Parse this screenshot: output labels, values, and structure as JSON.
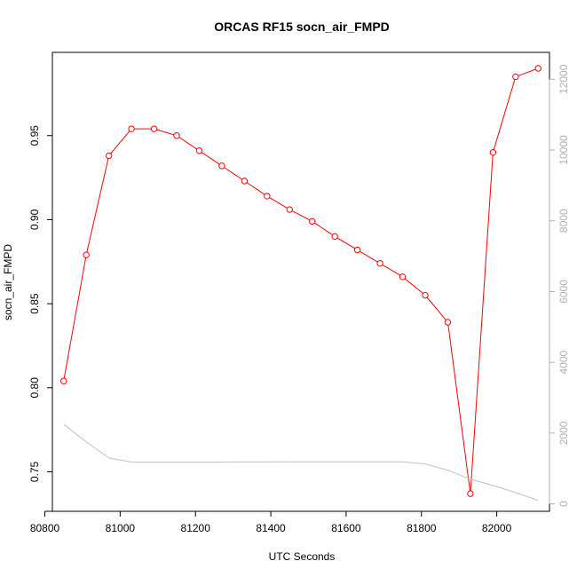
{
  "chart_data": {
    "type": "line",
    "title": "ORCAS RF15 socn_air_FMPD",
    "xlabel": "UTC Seconds",
    "ylabel": "socn_air_FMPD",
    "xlim": [
      80820,
      82140
    ],
    "ylim": [
      0.7265,
      0.9995
    ],
    "y2lim": [
      -210,
      12760
    ],
    "grid": false,
    "x_ticks": [
      80800,
      81000,
      81200,
      81400,
      81600,
      81800,
      82000
    ],
    "y_ticks": [
      0.75,
      0.8,
      0.85,
      0.9,
      0.95
    ],
    "y2_ticks": [
      0,
      2000,
      4000,
      6000,
      8000,
      10000,
      12000
    ],
    "series": [
      {
        "axis": "left",
        "color": "#ff0000",
        "marker": "open-circle",
        "x": [
          80850,
          80910,
          80970,
          81030,
          81090,
          81150,
          81210,
          81270,
          81330,
          81390,
          81450,
          81510,
          81570,
          81630,
          81690,
          81750,
          81810,
          81870,
          81930,
          81990,
          82050,
          82110
        ],
        "values": [
          0.804,
          0.879,
          0.938,
          0.954,
          0.954,
          0.95,
          0.941,
          0.932,
          0.923,
          0.914,
          0.906,
          0.899,
          0.89,
          0.882,
          0.874,
          0.866,
          0.855,
          0.839,
          0.737,
          0.94,
          0.985,
          0.99
        ]
      },
      {
        "axis": "right",
        "color": "#c0c0c0",
        "marker": "none",
        "x": [
          80850,
          80910,
          80970,
          81030,
          81090,
          81150,
          81210,
          81270,
          81330,
          81390,
          81450,
          81510,
          81570,
          81630,
          81690,
          81750,
          81810,
          81870,
          81930,
          81990,
          82050,
          82110
        ],
        "values": [
          2250,
          1750,
          1300,
          1180,
          1180,
          1180,
          1180,
          1180,
          1185,
          1185,
          1190,
          1190,
          1190,
          1190,
          1190,
          1190,
          1130,
          950,
          700,
          520,
          320,
          100
        ]
      }
    ]
  }
}
